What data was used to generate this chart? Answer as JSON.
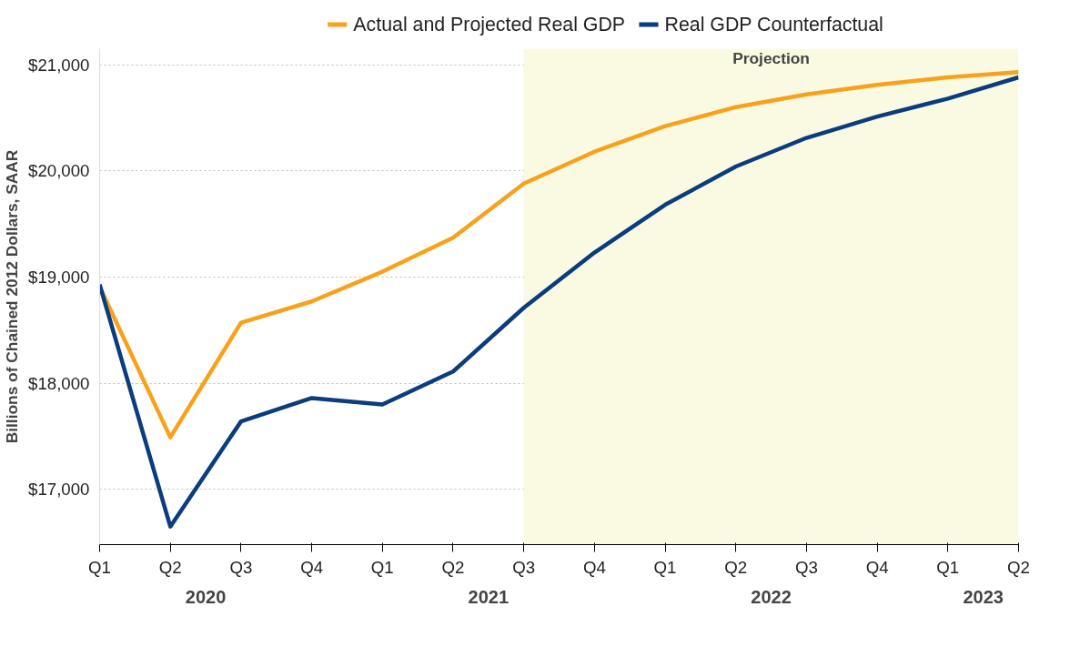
{
  "chart_data": {
    "type": "line",
    "ylabel": "Billions of Chained 2012 Dollars, SAAR",
    "x": [
      "2020-01",
      "2020-04",
      "2020-07",
      "2020-10",
      "2021-01",
      "2021-04",
      "2021-07",
      "2021-10",
      "2022-01",
      "2022-04",
      "2022-07",
      "2022-10",
      "2023-01",
      "2023-04"
    ],
    "series": [
      {
        "name": "Actual and Projected Real GDP",
        "color": "#f9a11b",
        "values": [
          18910,
          17490,
          18570,
          18770,
          19050,
          19370,
          19880,
          20180,
          20420,
          20600,
          20720,
          20810,
          20880,
          20930
        ]
      },
      {
        "name": "Real GDP Counterfactual",
        "color": "#0b3c7d",
        "values": [
          18930,
          16650,
          17640,
          17860,
          17800,
          18110,
          18710,
          19230,
          19680,
          20040,
          20310,
          20510,
          20680,
          20880
        ]
      }
    ],
    "xlim": [
      "2020-01",
      "2023-04"
    ],
    "xticks": [
      {
        "value": "2020-01",
        "label": "Q1"
      },
      {
        "value": "2020-04",
        "label": "Q2"
      },
      {
        "value": "2020-07",
        "label": "Q3"
      },
      {
        "value": "2020-10",
        "label": "Q4"
      },
      {
        "value": "2021-01",
        "label": "Q1"
      },
      {
        "value": "2021-04",
        "label": "Q2"
      },
      {
        "value": "2021-07",
        "label": "Q3"
      },
      {
        "value": "2021-10",
        "label": "Q4"
      },
      {
        "value": "2022-01",
        "label": "Q1"
      },
      {
        "value": "2022-04",
        "label": "Q2"
      },
      {
        "value": "2022-07",
        "label": "Q3"
      },
      {
        "value": "2022-10",
        "label": "Q4"
      },
      {
        "value": "2023-01",
        "label": "Q1"
      },
      {
        "value": "2023-04",
        "label": "Q2"
      }
    ],
    "ylim": [
      16480,
      21150
    ],
    "yticks": [
      {
        "value": 17000,
        "label": "$17,000"
      },
      {
        "value": 18000,
        "label": "$18,000"
      },
      {
        "value": 19000,
        "label": "$19,000"
      },
      {
        "value": 20000,
        "label": "$20,000"
      },
      {
        "value": 21000,
        "label": "$21,000"
      }
    ],
    "bands": [
      {
        "axis": "x",
        "from": "2021-07",
        "to": "2023-04",
        "label": "Projection",
        "color": "#fafae3"
      }
    ],
    "annotations": [
      "2020",
      "2021",
      "2022",
      "2023"
    ],
    "grid": "y",
    "legend": "top",
    "marker": "none",
    "line_style": "solid"
  }
}
